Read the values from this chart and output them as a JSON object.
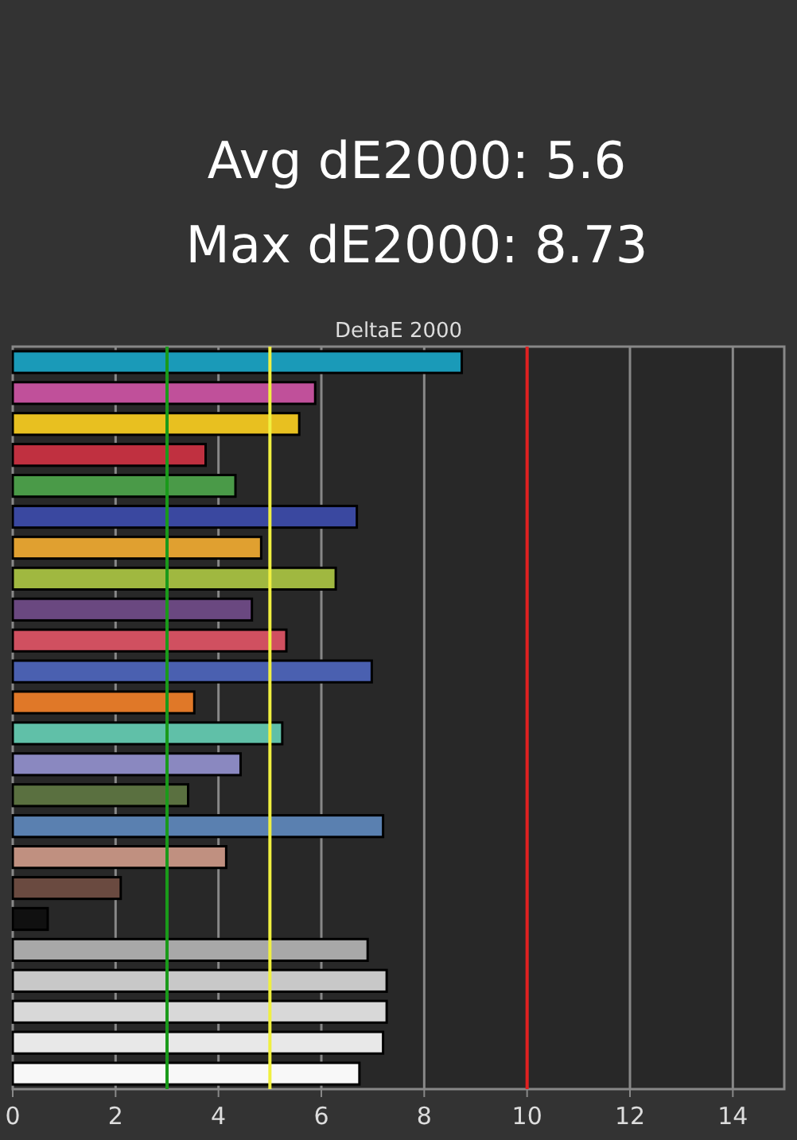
{
  "chart_data": {
    "type": "bar",
    "orientation": "horizontal",
    "title": "DeltaE 2000",
    "annotations": [
      "Avg dE2000: 5.6",
      "Max dE2000: 8.73"
    ],
    "categories": [
      null,
      null,
      null,
      null,
      null,
      null,
      null,
      null,
      null,
      null,
      null,
      null,
      null,
      null,
      null,
      null,
      null,
      null,
      null,
      null,
      null,
      null,
      null,
      null
    ],
    "values": [
      8.73,
      5.88,
      5.57,
      3.75,
      4.33,
      6.69,
      4.83,
      6.28,
      4.65,
      5.32,
      6.98,
      3.53,
      5.24,
      4.43,
      3.41,
      7.2,
      4.15,
      2.1,
      0.68,
      6.9,
      7.27,
      7.27,
      7.2,
      6.74
    ],
    "colors": [
      "#1a9ab8",
      "#c0509a",
      "#e8c020",
      "#c03040",
      "#4a9a48",
      "#3a48a0",
      "#e0a030",
      "#a0b840",
      "#6a4880",
      "#d05060",
      "#4a60b0",
      "#e07828",
      "#60c0a8",
      "#8a88c0",
      "#5a7040",
      "#5a80b0",
      "#c09080",
      "#6a4a40",
      "#101010",
      "#a8a8a8",
      "#c8c8c8",
      "#d8d8d8",
      "#e8e8e8",
      "#f8f8f8"
    ],
    "xlim": [
      0,
      15
    ],
    "xticks": [
      0,
      2,
      4,
      6,
      8,
      10,
      12,
      14
    ],
    "grid": "x",
    "ref_lines": [
      {
        "axis": "x",
        "value": 3,
        "color": "#1a9a1a"
      },
      {
        "axis": "x",
        "value": 5,
        "color": "#f0f040"
      },
      {
        "axis": "x",
        "value": 10,
        "color": "#e02020"
      }
    ]
  }
}
